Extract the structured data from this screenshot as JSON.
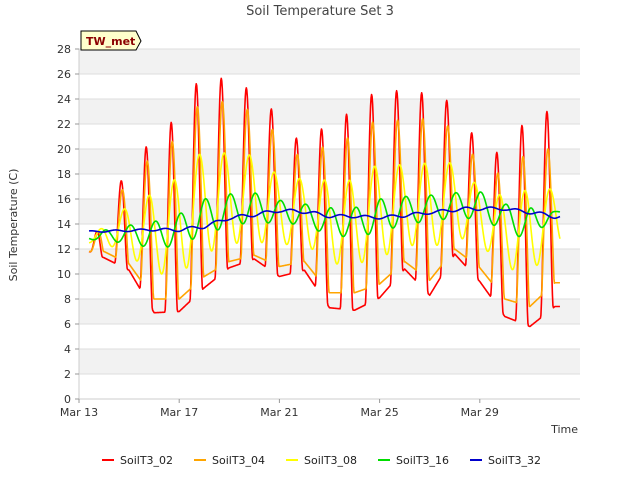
{
  "chart_data": {
    "type": "line",
    "title": "Soil Temperature Set 3",
    "xlabel": "Time",
    "ylabel": "Soil Temperature (C)",
    "site_label": "TW_met",
    "ylim": [
      0,
      28
    ],
    "y_ticks": [
      0,
      2,
      4,
      6,
      8,
      10,
      12,
      14,
      16,
      18,
      20,
      22,
      24,
      26,
      28
    ],
    "xlim_days": [
      0,
      20
    ],
    "x_ticks": [
      {
        "day": 0,
        "label": "Mar 13"
      },
      {
        "day": 4,
        "label": "Mar 17"
      },
      {
        "day": 8,
        "label": "Mar 21"
      },
      {
        "day": 12,
        "label": "Mar 25"
      },
      {
        "day": 16,
        "label": "Mar 29"
      }
    ],
    "grid": "horizontal bands",
    "legend_position": "bottom",
    "x_day_range": [
      0.4,
      19.2
    ],
    "series": [
      {
        "name": "SoilT3_02",
        "color": "#ff0000",
        "phase": 0.68,
        "shape": 0,
        "days": [
          0.4,
          1.0,
          2.0,
          3.0,
          4.0,
          5.0,
          6.0,
          7.0,
          8.0,
          9.0,
          10.0,
          11.0,
          12.0,
          13.0,
          14.0,
          15.0,
          16.0,
          17.0,
          18.0,
          19.0,
          19.2
        ],
        "min": [
          11.8,
          11.3,
          10.3,
          6.9,
          7.0,
          8.9,
          10.5,
          11.2,
          9.8,
          10.3,
          7.3,
          7.1,
          8.1,
          10.4,
          8.3,
          11.6,
          9.4,
          6.6,
          5.8,
          7.4,
          7.4
        ],
        "max": [
          11.8,
          15.0,
          18.6,
          20.9,
          22.7,
          26.4,
          25.3,
          24.7,
          22.5,
          20.1,
          22.3,
          23.0,
          25.0,
          24.5,
          24.5,
          23.6,
          20.2,
          19.5,
          23.0,
          23.0,
          23.0
        ]
      },
      {
        "name": "SoilT3_04",
        "color": "#ffa500",
        "phase": 0.72,
        "shape": 1,
        "days": [
          0.4,
          1.0,
          2.0,
          3.0,
          4.0,
          5.0,
          6.0,
          7.0,
          8.0,
          9.0,
          10.0,
          11.0,
          12.0,
          13.0,
          14.0,
          15.0,
          16.0,
          17.0,
          18.0,
          19.0,
          19.2
        ],
        "min": [
          11.8,
          11.8,
          10.8,
          8.0,
          8.0,
          9.8,
          11.0,
          11.5,
          10.6,
          11.0,
          8.5,
          8.5,
          9.2,
          11.0,
          9.5,
          12.0,
          10.5,
          8.0,
          7.4,
          9.3,
          9.3
        ],
        "max": [
          11.8,
          14.5,
          17.6,
          19.6,
          21.0,
          24.3,
          23.6,
          23.0,
          21.0,
          19.0,
          20.6,
          21.0,
          22.6,
          22.2,
          22.5,
          21.6,
          18.8,
          17.8,
          20.0,
          20.0,
          20.0
        ]
      },
      {
        "name": "SoilT3_08",
        "color": "#ffff00",
        "phase": 0.8,
        "shape": 2,
        "days": [
          0.4,
          1.0,
          2.0,
          3.0,
          4.0,
          5.0,
          6.0,
          7.0,
          8.0,
          9.0,
          10.0,
          11.0,
          12.0,
          13.0,
          14.0,
          15.0,
          16.0,
          17.0,
          18.0,
          19.0,
          19.2
        ],
        "min": [
          12.5,
          12.5,
          11.5,
          10.0,
          10.0,
          11.6,
          12.4,
          12.6,
          12.3,
          12.5,
          10.8,
          10.8,
          11.2,
          12.4,
          12.0,
          13.0,
          12.4,
          10.5,
          10.0,
          12.4,
          12.4
        ],
        "max": [
          12.5,
          14.0,
          15.5,
          16.5,
          17.8,
          20.0,
          19.6,
          19.5,
          17.8,
          17.6,
          17.5,
          17.5,
          18.9,
          18.7,
          18.9,
          18.9,
          16.9,
          16.2,
          16.8,
          16.8,
          16.8
        ]
      },
      {
        "name": "SoilT3_16",
        "color": "#00dd00",
        "phase": 0.05,
        "shape": 3,
        "days": [
          0.4,
          1.0,
          2.0,
          3.0,
          4.0,
          5.0,
          6.0,
          7.0,
          8.0,
          9.0,
          10.0,
          11.0,
          12.0,
          13.0,
          14.0,
          15.0,
          16.0,
          17.0,
          18.0,
          19.0,
          19.2
        ],
        "min": [
          12.8,
          12.6,
          12.5,
          12.0,
          12.3,
          13.2,
          13.8,
          14.2,
          14.0,
          14.0,
          13.0,
          13.0,
          13.3,
          14.0,
          14.2,
          14.5,
          14.4,
          13.5,
          12.6,
          14.8,
          14.8
        ],
        "max": [
          13.0,
          13.5,
          13.9,
          14.2,
          14.8,
          16.0,
          16.4,
          16.5,
          15.9,
          15.6,
          15.3,
          15.3,
          16.0,
          16.2,
          16.3,
          16.5,
          16.6,
          15.6,
          15.3,
          15.0,
          15.0
        ]
      },
      {
        "name": "SoilT3_32",
        "color": "#0000cc",
        "phase": 0.45,
        "shape": 3,
        "days": [
          0.4,
          1.0,
          2.0,
          3.0,
          4.0,
          5.0,
          6.0,
          7.0,
          8.0,
          9.0,
          10.0,
          11.0,
          12.0,
          13.0,
          14.0,
          15.0,
          16.0,
          17.0,
          18.0,
          19.0,
          19.2
        ],
        "min": [
          13.35,
          13.35,
          13.4,
          13.45,
          13.4,
          13.65,
          14.35,
          14.6,
          14.95,
          14.85,
          14.5,
          14.5,
          14.4,
          14.55,
          14.8,
          15.0,
          15.1,
          15.1,
          14.8,
          14.45,
          14.45
        ],
        "max": [
          13.45,
          13.5,
          13.55,
          13.65,
          13.65,
          13.95,
          14.6,
          14.9,
          15.2,
          15.15,
          14.75,
          14.75,
          14.6,
          14.85,
          15.0,
          15.3,
          15.4,
          15.3,
          15.1,
          14.75,
          14.75
        ]
      }
    ]
  }
}
